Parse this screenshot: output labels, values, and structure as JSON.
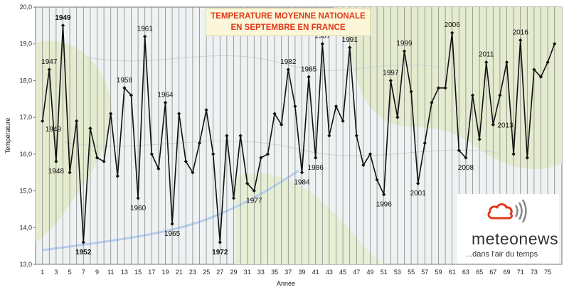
{
  "chart_data": {
    "type": "line",
    "title": "TEMPERATURE MOYENNE NATIONALE",
    "subtitle": "EN SEPTEMBRE EN FRANCE",
    "xlabel": "Année",
    "ylabel": "Température",
    "ylim": [
      13.0,
      20.0
    ],
    "yticks": [
      "13,0",
      "14,0",
      "15,0",
      "16,0",
      "17,0",
      "18,0",
      "19,0",
      "20,0"
    ],
    "xlim": [
      1,
      76
    ],
    "xticks": [
      1,
      3,
      5,
      7,
      9,
      11,
      13,
      15,
      17,
      19,
      21,
      23,
      25,
      27,
      29,
      31,
      33,
      35,
      37,
      39,
      41,
      43,
      45,
      47,
      49,
      51,
      53,
      55,
      57,
      59,
      61,
      63,
      65,
      67,
      69,
      71,
      73,
      75
    ],
    "grid": "vertical",
    "x": [
      1,
      2,
      3,
      4,
      5,
      6,
      7,
      8,
      9,
      10,
      11,
      12,
      13,
      14,
      15,
      16,
      17,
      18,
      19,
      20,
      21,
      22,
      23,
      24,
      25,
      26,
      27,
      28,
      29,
      30,
      31,
      32,
      33,
      34,
      35,
      36,
      37,
      38,
      39,
      40,
      41,
      42,
      43,
      44,
      45,
      46,
      47,
      48,
      49,
      50,
      51,
      52,
      53,
      54,
      55,
      56,
      57,
      58,
      59,
      60,
      61,
      62,
      63,
      64,
      65,
      66,
      67,
      68,
      69,
      70,
      71,
      72,
      73,
      74,
      75,
      76
    ],
    "y": [
      16.9,
      18.3,
      15.8,
      19.5,
      15.5,
      16.9,
      13.6,
      16.7,
      15.9,
      15.8,
      17.1,
      15.4,
      17.8,
      17.6,
      14.8,
      19.2,
      16.0,
      15.6,
      17.4,
      14.1,
      17.1,
      15.8,
      15.5,
      16.3,
      17.2,
      16.0,
      13.6,
      16.5,
      14.8,
      16.5,
      15.2,
      15.0,
      15.9,
      16.0,
      17.1,
      16.8,
      18.3,
      17.3,
      15.5,
      18.1,
      15.9,
      19.0,
      16.5,
      17.3,
      16.9,
      18.9,
      16.5,
      15.7,
      16.0,
      15.3,
      14.9,
      18.0,
      17.0,
      18.8,
      17.7,
      15.2,
      16.3,
      17.4,
      17.8,
      17.8,
      19.3,
      16.1,
      15.9,
      17.6,
      16.4,
      18.5,
      16.8,
      17.6,
      18.5,
      16.0,
      19.1,
      15.9,
      18.3,
      18.1,
      18.5,
      19.0
    ],
    "annotations": [
      {
        "text": "1947",
        "x": 2,
        "pos": "above"
      },
      {
        "text": "1948",
        "x": 3,
        "pos": "below"
      },
      {
        "text": "1949",
        "x": 3,
        "pos": "mid"
      },
      {
        "text": "1949",
        "x": 4,
        "pos": "above",
        "color": "#d0101a",
        "bold": true
      },
      {
        "text": "1952",
        "x": 7,
        "pos": "below",
        "color": "#3a9fe0",
        "bold": true
      },
      {
        "text": "1958",
        "x": 13,
        "pos": "above"
      },
      {
        "text": "1960",
        "x": 15,
        "pos": "below"
      },
      {
        "text": "1961",
        "x": 16,
        "pos": "above"
      },
      {
        "text": "1964",
        "x": 19,
        "pos": "above"
      },
      {
        "text": "1965",
        "x": 20,
        "pos": "below"
      },
      {
        "text": "1972",
        "x": 27,
        "pos": "below",
        "color": "#3a9fe0",
        "bold": true
      },
      {
        "text": "1977",
        "x": 32,
        "pos": "below"
      },
      {
        "text": "1982",
        "x": 37,
        "pos": "above"
      },
      {
        "text": "1984",
        "x": 39,
        "pos": "below"
      },
      {
        "text": "1985",
        "x": 40,
        "pos": "above"
      },
      {
        "text": "1986",
        "x": 41,
        "pos": "below"
      },
      {
        "text": "1987",
        "x": 42,
        "pos": "above"
      },
      {
        "text": "1991",
        "x": 46,
        "pos": "above"
      },
      {
        "text": "1996",
        "x": 51,
        "pos": "below"
      },
      {
        "text": "1997",
        "x": 52,
        "pos": "above"
      },
      {
        "text": "1999",
        "x": 54,
        "pos": "above"
      },
      {
        "text": "2001",
        "x": 56,
        "pos": "below"
      },
      {
        "text": "2006",
        "x": 61,
        "pos": "above"
      },
      {
        "text": "2008",
        "x": 63,
        "pos": "below"
      },
      {
        "text": "2011",
        "x": 66,
        "pos": "above"
      },
      {
        "text": "2013",
        "x": 67,
        "pos": "right"
      },
      {
        "text": "2016",
        "x": 71,
        "pos": "above"
      }
    ]
  },
  "brand": {
    "name": "meteonews",
    "tagline": "...dans l'air du temps",
    "accent": "#e0381a"
  },
  "colors": {
    "line": "#111111",
    "grid": "#888888",
    "record_warm": "#d0101a",
    "record_cold": "#3a9fe0",
    "map_land": "#e4ebcf",
    "map_sea": "#eef2f2"
  }
}
